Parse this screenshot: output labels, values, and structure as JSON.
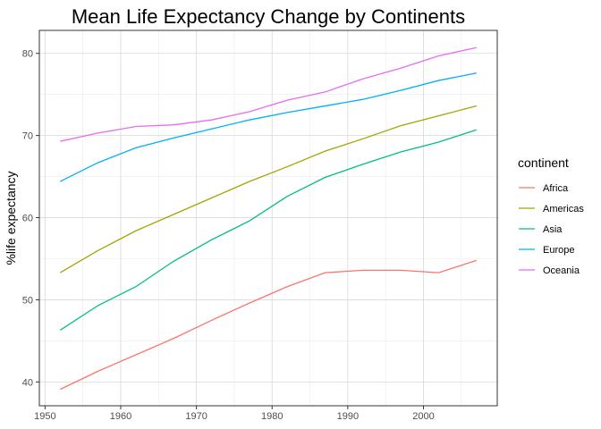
{
  "chart_data": {
    "type": "line",
    "title": "Mean Life Expectancy Change by Continents",
    "xlabel": "",
    "ylabel": "%life expectancy",
    "x": [
      1952,
      1957,
      1962,
      1967,
      1972,
      1977,
      1982,
      1987,
      1992,
      1997,
      2002,
      2007
    ],
    "xlim": [
      1949.25,
      2009.75
    ],
    "ylim": [
      37.1,
      82.8
    ],
    "xticks": [
      "1950",
      "1960",
      "1970",
      "1980",
      "1990",
      "2000"
    ],
    "yticks": [
      "40",
      "50",
      "60",
      "70",
      "80"
    ],
    "grid": true,
    "legend": {
      "title": "continent",
      "position": "right"
    },
    "series": [
      {
        "name": "Africa",
        "color": "#F8766D",
        "values": [
          39.1,
          41.3,
          43.3,
          45.3,
          47.5,
          49.6,
          51.6,
          53.3,
          53.6,
          53.6,
          53.3,
          54.8
        ]
      },
      {
        "name": "Americas",
        "color": "#A3A500",
        "values": [
          53.3,
          56.0,
          58.4,
          60.4,
          62.4,
          64.4,
          66.2,
          68.1,
          69.6,
          71.2,
          72.4,
          73.6
        ]
      },
      {
        "name": "Asia",
        "color": "#00BF7D",
        "values": [
          46.3,
          49.3,
          51.6,
          54.7,
          57.3,
          59.6,
          62.6,
          64.9,
          66.5,
          68.0,
          69.2,
          70.7
        ]
      },
      {
        "name": "Europe",
        "color": "#00B0F6",
        "values": [
          64.4,
          66.7,
          68.5,
          69.7,
          70.8,
          71.9,
          72.8,
          73.6,
          74.4,
          75.5,
          76.7,
          77.6
        ]
      },
      {
        "name": "Oceania",
        "color": "#E76BF3",
        "values": [
          69.3,
          70.3,
          71.1,
          71.3,
          71.9,
          72.9,
          74.3,
          75.3,
          76.9,
          78.2,
          79.7,
          80.7
        ]
      }
    ]
  }
}
